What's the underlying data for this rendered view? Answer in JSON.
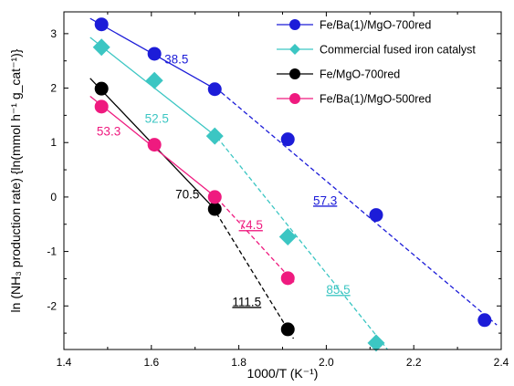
{
  "chart_data": {
    "type": "scatter",
    "xlabel": "1000/T (K⁻¹)",
    "ylabel": "ln (NH₃ production rate) {ln(mmol h⁻¹ g_cat⁻¹)}",
    "xlim": [
      1.4,
      2.4
    ],
    "ylim": [
      -2.8,
      3.4
    ],
    "x_ticks": [
      "1.4",
      "1.6",
      "1.8",
      "2.0",
      "2.2",
      "2.4"
    ],
    "y_ticks": [
      "-2",
      "-1",
      "0",
      "1",
      "2",
      "3"
    ],
    "legend_position": "top-right",
    "series": [
      {
        "name": "Fe/Ba(1)/MgO-700red",
        "color": "#1c1cd8",
        "marker": "circle",
        "points": [
          [
            1.486,
            3.17
          ],
          [
            1.607,
            2.63
          ],
          [
            1.745,
            1.98
          ],
          [
            1.912,
            1.06
          ],
          [
            2.114,
            -0.33
          ],
          [
            2.362,
            -2.26
          ]
        ],
        "fit_solid": [
          [
            1.46,
            3.28
          ],
          [
            1.76,
            1.92
          ]
        ],
        "fit_dashed": [
          [
            1.76,
            1.92
          ],
          [
            2.39,
            -2.35
          ]
        ],
        "annotations": [
          {
            "text": "38.5",
            "x": 1.63,
            "y": 2.45,
            "underline": false
          },
          {
            "text": "57.3",
            "x": 1.97,
            "y": -0.14,
            "underline": true
          }
        ]
      },
      {
        "name": "Commercial fused iron catalyst",
        "color": "#3cc6c3",
        "marker": "diamond",
        "points": [
          [
            1.486,
            2.75
          ],
          [
            1.607,
            2.14
          ],
          [
            1.745,
            1.12
          ],
          [
            1.912,
            -0.73
          ],
          [
            2.114,
            -2.68
          ]
        ],
        "fit_solid": [
          [
            1.46,
            2.93
          ],
          [
            1.75,
            1.1
          ]
        ],
        "fit_dashed": [
          [
            1.75,
            1.1
          ],
          [
            2.14,
            -2.8
          ]
        ],
        "annotations": [
          {
            "text": "52.5",
            "x": 1.585,
            "y": 1.36,
            "underline": false
          },
          {
            "text": "85.5",
            "x": 2.0,
            "y": -1.78,
            "underline": true
          }
        ]
      },
      {
        "name": "Fe/MgO-700red",
        "color": "#000000",
        "marker": "circle",
        "points": [
          [
            1.486,
            1.99
          ],
          [
            1.745,
            -0.22
          ],
          [
            1.912,
            -2.43
          ]
        ],
        "fit_solid": [
          [
            1.46,
            2.18
          ],
          [
            1.74,
            -0.18
          ]
        ],
        "fit_dashed": [
          [
            1.74,
            -0.18
          ],
          [
            1.925,
            -2.6
          ]
        ],
        "annotations": [
          {
            "text": "70.5",
            "x": 1.655,
            "y": -0.03,
            "underline": false
          },
          {
            "text": "111.5",
            "x": 1.785,
            "y": -2.0,
            "underline": true
          }
        ]
      },
      {
        "name": "Fe/Ba(1)/MgO-500red",
        "color": "#ef1a7f",
        "marker": "circle",
        "points": [
          [
            1.486,
            1.66
          ],
          [
            1.607,
            0.96
          ],
          [
            1.745,
            0.0
          ],
          [
            1.912,
            -1.49
          ]
        ],
        "fit_solid": [
          [
            1.46,
            1.85
          ],
          [
            1.75,
            -0.02
          ]
        ],
        "fit_dashed": [
          [
            1.75,
            -0.02
          ],
          [
            1.93,
            -1.6
          ]
        ],
        "annotations": [
          {
            "text": "53.3",
            "x": 1.475,
            "y": 1.13,
            "underline": false
          },
          {
            "text": "74.5",
            "x": 1.8,
            "y": -0.59,
            "underline": true
          }
        ]
      }
    ]
  }
}
